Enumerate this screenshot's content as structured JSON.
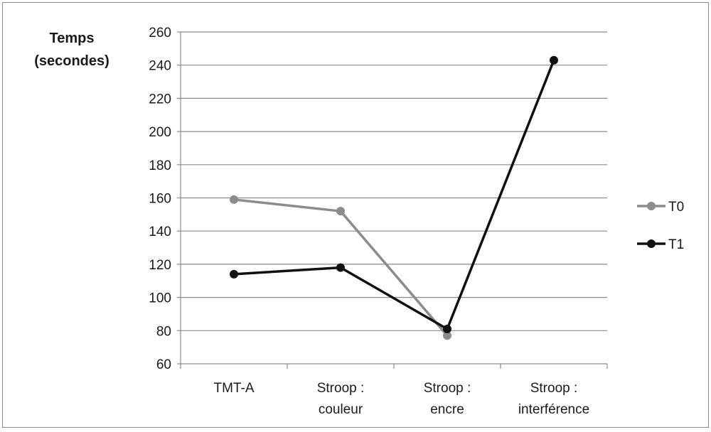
{
  "chart_data": {
    "type": "line",
    "ylabel_lines": [
      "Temps",
      "(secondes)"
    ],
    "xlabel": "",
    "ylim": [
      60,
      260
    ],
    "ytick_step": 20,
    "yticks": [
      "60",
      "80",
      "100",
      "120",
      "140",
      "160",
      "180",
      "200",
      "220",
      "240",
      "260"
    ],
    "grid": true,
    "legend": "right",
    "categories": [
      [
        "TMT-A"
      ],
      [
        "Stroop :",
        "couleur"
      ],
      [
        "Stroop :",
        "encre"
      ],
      [
        "Stroop :",
        "interférence"
      ]
    ],
    "series": [
      {
        "name": "T0",
        "color": "#8c8c8c",
        "values": [
          159,
          152,
          77,
          null
        ]
      },
      {
        "name": "T1",
        "color": "#111111",
        "values": [
          114,
          118,
          81,
          243
        ]
      }
    ]
  }
}
